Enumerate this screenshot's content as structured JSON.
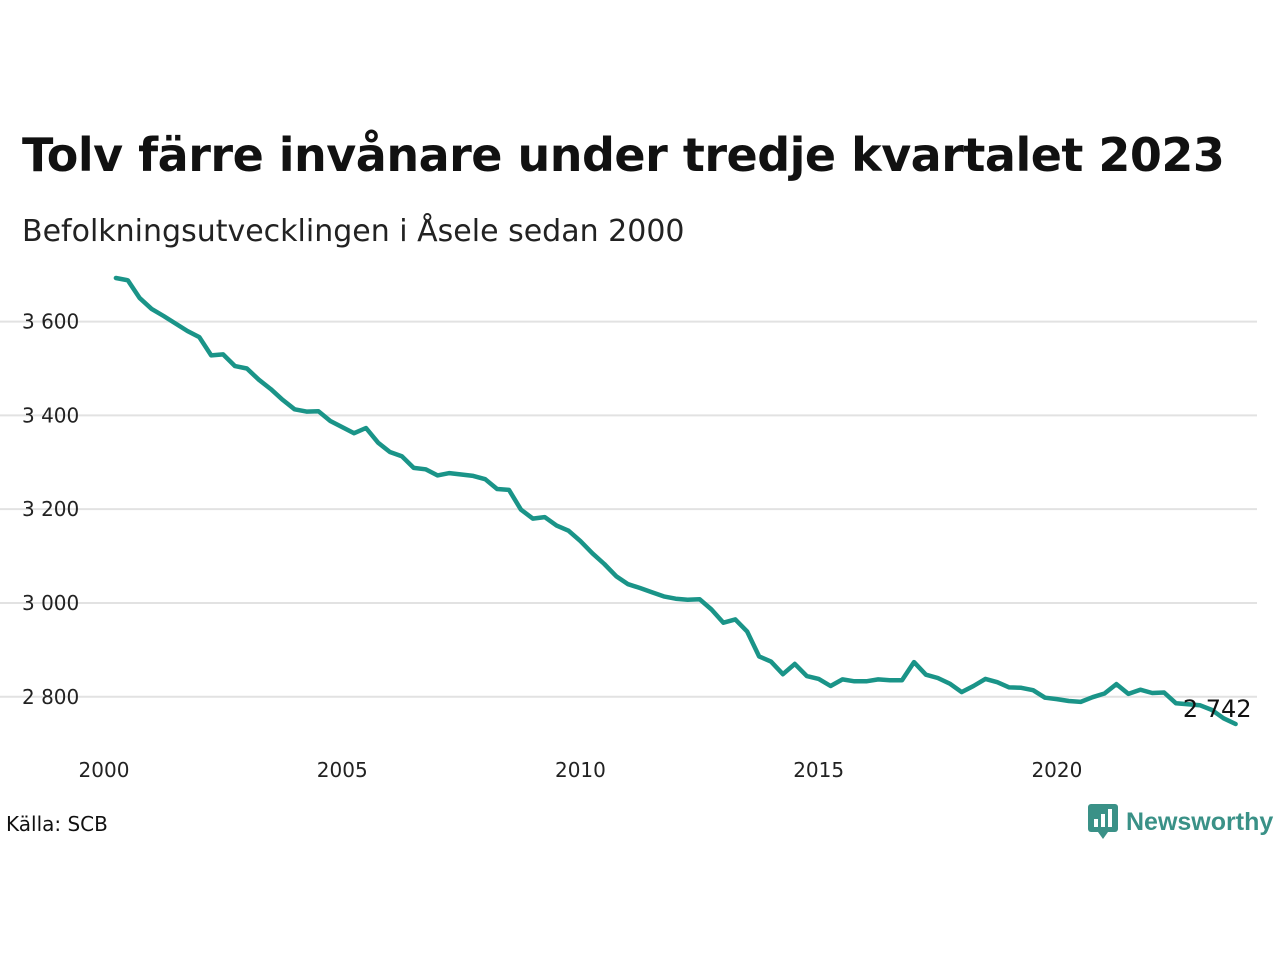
{
  "title": "Tolv färre invånare under tredje kvartalet 2023",
  "subtitle": "Befolkningsutvecklingen i Åsele sedan 2000",
  "source": "Källa: SCB",
  "brand": {
    "name": "Newsworthy",
    "icon": "newsworthy-logo-icon",
    "color": "#3a9187"
  },
  "colors": {
    "line": "#1a9488",
    "grid": "#e2e2e2"
  },
  "chart_data": {
    "type": "line",
    "title": "Tolv färre invånare under tredje kvartalet 2023",
    "subtitle": "Befolkningsutvecklingen i Åsele sedan 2000",
    "xlabel": "",
    "ylabel": "",
    "xlim": [
      2000,
      2024.2
    ],
    "ylim": [
      2695,
      3710
    ],
    "x_ticks": [
      2000,
      2005,
      2010,
      2015,
      2020
    ],
    "x_tick_labels": [
      "2000",
      "2005",
      "2010",
      "2015",
      "2020"
    ],
    "y_ticks": [
      2800,
      3000,
      3200,
      3400,
      3600
    ],
    "y_tick_labels": [
      "2 800",
      "3 000",
      "3 200",
      "3 400",
      "3 600"
    ],
    "grid": "horizontal",
    "end_label": "2 742",
    "series": [
      {
        "x": [
          2000.25,
          2000.5,
          2000.75,
          2001.0,
          2001.25,
          2001.5,
          2001.75,
          2002.0,
          2002.25,
          2002.5,
          2002.75,
          2003.0,
          2003.25,
          2003.5,
          2003.75,
          2004.0,
          2004.25,
          2004.5,
          2004.75,
          2005.0,
          2005.25,
          2005.5,
          2005.75,
          2006.0,
          2006.25,
          2006.5,
          2006.75,
          2007.0,
          2007.25,
          2007.5,
          2007.75,
          2008.0,
          2008.25,
          2008.5,
          2008.75,
          2009.0,
          2009.25,
          2009.5,
          2009.75,
          2010.0,
          2010.25,
          2010.5,
          2010.75,
          2011.0,
          2011.25,
          2011.5,
          2011.75,
          2012.0,
          2012.25,
          2012.5,
          2012.75,
          2013.0,
          2013.25,
          2013.5,
          2013.75,
          2014.0,
          2014.25,
          2014.5,
          2014.75,
          2015.0,
          2015.25,
          2015.5,
          2015.75,
          2016.0,
          2016.25,
          2016.5,
          2016.75,
          2017.0,
          2017.25,
          2017.5,
          2017.75,
          2018.0,
          2018.25,
          2018.5,
          2018.75,
          2019.0,
          2019.25,
          2019.5,
          2019.75,
          2020.0,
          2020.25,
          2020.5,
          2020.75,
          2021.0,
          2021.25,
          2021.5,
          2021.75,
          2022.0,
          2022.25,
          2022.5,
          2022.75,
          2023.0,
          2023.25,
          2023.5,
          2023.75
        ],
        "values": [
          3693,
          3688,
          3650,
          3627,
          3612,
          3596,
          3580,
          3567,
          3528,
          3530,
          3505,
          3500,
          3476,
          3456,
          3433,
          3413,
          3408,
          3409,
          3388,
          3375,
          3362,
          3373,
          3342,
          3322,
          3313,
          3288,
          3285,
          3272,
          3277,
          3274,
          3271,
          3264,
          3243,
          3241,
          3199,
          3180,
          3183,
          3165,
          3154,
          3132,
          3106,
          3083,
          3057,
          3040,
          3032,
          3023,
          3014,
          3009,
          3007,
          3008,
          2986,
          2958,
          2965,
          2939,
          2886,
          2875,
          2848,
          2870,
          2844,
          2838,
          2823,
          2837,
          2833,
          2833,
          2837,
          2835,
          2835,
          2874,
          2847,
          2840,
          2828,
          2810,
          2823,
          2838,
          2831,
          2820,
          2819,
          2814,
          2798,
          2795,
          2791,
          2789,
          2799,
          2807,
          2827,
          2806,
          2815,
          2808,
          2809,
          2786,
          2784,
          2782,
          2772,
          2754,
          2742
        ]
      }
    ]
  }
}
